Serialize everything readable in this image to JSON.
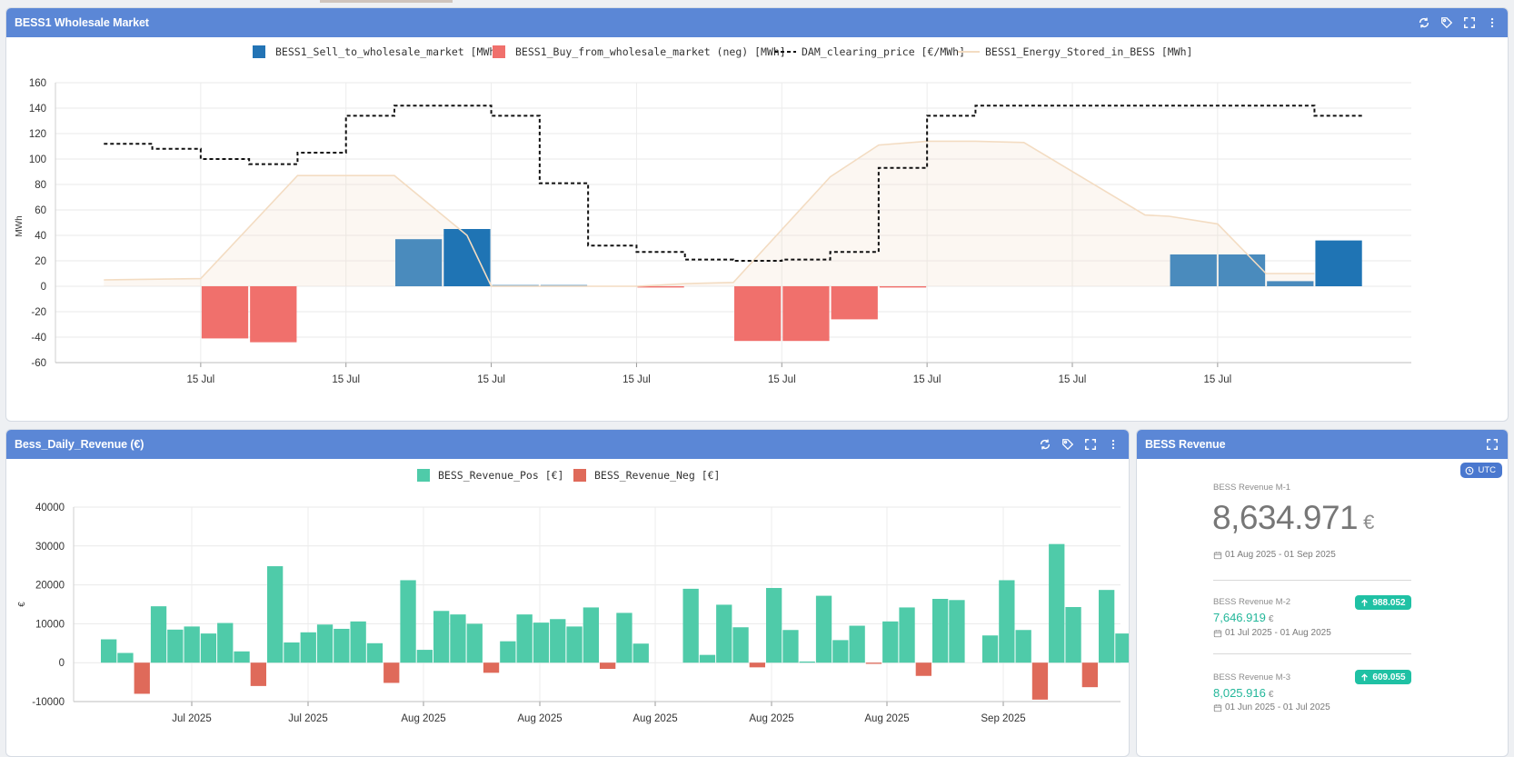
{
  "panels": {
    "wholesale": {
      "title": "BESS1 Wholesale Market"
    },
    "daily": {
      "title": "Bess_Daily_Revenue (€)"
    },
    "revenue": {
      "title": "BESS Revenue"
    }
  },
  "colors": {
    "header": "#5b87d6",
    "sell": "#2374b5",
    "buy": "#f0706c",
    "price": "#111111",
    "stored": "#f3dcc2",
    "pos": "#4fcba9",
    "neg": "#df6a5a",
    "accent_green": "#1fc1a4"
  },
  "chart_data": [
    {
      "type": "bar",
      "ylabel": "MWh",
      "ylim": [
        -60,
        160
      ],
      "yticks": [
        160,
        140,
        120,
        100,
        80,
        60,
        40,
        20,
        0,
        -20,
        -40,
        -60
      ],
      "x_tick_labels": [
        "15 Jul",
        "15 Jul",
        "15 Jul",
        "15 Jul",
        "15 Jul",
        "15 Jul",
        "15 Jul",
        "15 Jul"
      ],
      "grid": true,
      "legend_position": "top",
      "series": [
        {
          "name": "BESS1_Sell_to_wholesale_market [MWh]",
          "kind": "bar",
          "values": [
            0,
            0,
            0,
            0,
            0,
            0,
            0,
            37,
            45,
            1,
            1,
            0,
            0,
            0,
            0,
            0,
            0,
            0,
            0,
            0,
            0,
            0,
            0,
            25,
            25,
            4,
            36,
            0
          ]
        },
        {
          "name": "BESS1_Buy_from_wholesale_market (neg) [MWh]",
          "kind": "bar",
          "values": [
            0,
            0,
            0,
            -41,
            -44,
            0,
            0,
            0,
            0,
            0,
            0,
            0,
            -1,
            0,
            -43,
            -43,
            -26,
            -1,
            0,
            0,
            0,
            0,
            0,
            0,
            0,
            0,
            0,
            0
          ]
        },
        {
          "name": "DAM_clearing_price [€/MWh]",
          "kind": "step-dashed",
          "values": [
            120,
            112,
            108,
            100,
            96,
            105,
            134,
            142,
            142,
            134,
            81,
            32,
            27,
            21,
            20,
            21,
            27,
            93,
            134,
            142,
            142,
            142,
            142,
            142,
            142,
            142,
            134,
            null
          ]
        },
        {
          "name": "BESS1_Energy_Stored_in_BESS [MWh]",
          "kind": "area",
          "points": [
            [
              0,
              5
            ],
            [
              2,
              6
            ],
            [
              4,
              87
            ],
            [
              6,
              87
            ],
            [
              7.5,
              40
            ],
            [
              8,
              0
            ],
            [
              11,
              0
            ],
            [
              12,
              2
            ],
            [
              13,
              3
            ],
            [
              15,
              86
            ],
            [
              16,
              111
            ],
            [
              17,
              114
            ],
            [
              18,
              114
            ],
            [
              19,
              113
            ],
            [
              21.5,
              56
            ],
            [
              22,
              55
            ],
            [
              23,
              49
            ],
            [
              24,
              10
            ],
            [
              25,
              10
            ]
          ]
        }
      ]
    },
    {
      "type": "bar",
      "ylabel": "€",
      "ylim": [
        -10000,
        40000
      ],
      "yticks": [
        40000,
        30000,
        20000,
        10000,
        0,
        -10000
      ],
      "x_tick_labels": [
        "Jul 2025",
        "Jul 2025",
        "Aug 2025",
        "Aug 2025",
        "Aug 2025",
        "Aug 2025",
        "Aug 2025",
        "Sep 2025"
      ],
      "grid": true,
      "legend_position": "top",
      "series": [
        {
          "name": "BESS_Revenue_Pos [€]",
          "values": [
            6000,
            2500,
            0,
            14500,
            8500,
            9300,
            7500,
            10200,
            2900,
            0,
            24800,
            5200,
            7800,
            9800,
            8700,
            10600,
            5000,
            0,
            21200,
            3300,
            13300,
            12400,
            10000,
            0,
            5500,
            12400,
            10300,
            11200,
            9300,
            14200,
            0,
            12800,
            4900,
            0,
            0,
            19000,
            2000,
            14900,
            9100,
            0,
            19200,
            8400,
            300,
            17200,
            5800,
            9500,
            0,
            10600,
            14200,
            0,
            16400,
            16100,
            0,
            7000,
            21200,
            8400,
            0,
            30500,
            14300,
            0,
            18700,
            7500
          ]
        },
        {
          "name": "BESS_Revenue_Neg [€]",
          "values": [
            0,
            0,
            -8000,
            0,
            0,
            0,
            0,
            0,
            0,
            -6000,
            0,
            0,
            0,
            0,
            0,
            0,
            0,
            -5200,
            0,
            0,
            0,
            0,
            0,
            -2600,
            0,
            0,
            0,
            0,
            0,
            0,
            -1600,
            0,
            0,
            0,
            0,
            0,
            0,
            0,
            0,
            -1200,
            0,
            0,
            0,
            0,
            0,
            0,
            -300,
            0,
            0,
            -3400,
            0,
            0,
            0,
            0,
            0,
            0,
            -9500,
            0,
            0,
            -6300,
            0,
            0
          ]
        }
      ]
    }
  ],
  "kpi": {
    "utc": "UTC",
    "m1": {
      "label": "BESS Revenue M-1",
      "value": "8,634.971",
      "unit": "€",
      "range": "01 Aug 2025 - 01 Sep 2025"
    },
    "m2": {
      "label": "BESS Revenue M-2",
      "value": "7,646.919",
      "unit": "€",
      "range": "01 Jul 2025 - 01 Aug 2025",
      "delta": "988.052"
    },
    "m3": {
      "label": "BESS Revenue M-3",
      "value": "8,025.916",
      "unit": "€",
      "range": "01 Jun 2025 - 01 Jul 2025",
      "delta": "609.055"
    }
  },
  "icons": [
    "refresh-icon",
    "tag-icon",
    "fullscreen-icon",
    "more-vertical-icon",
    "clock-icon",
    "calendar-icon",
    "arrow-up-icon"
  ]
}
